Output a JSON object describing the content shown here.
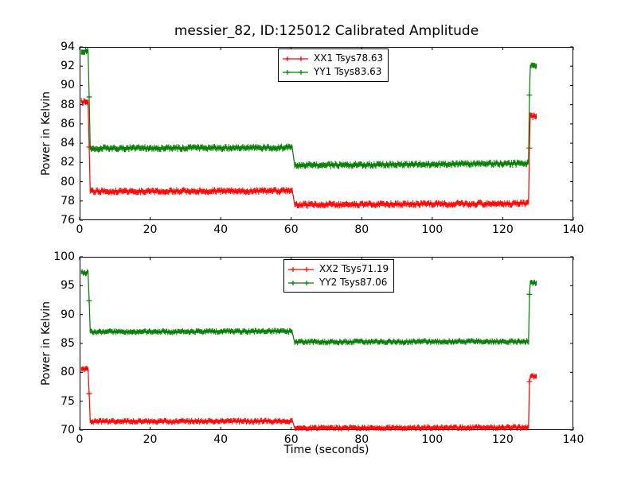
{
  "figure": {
    "title": "messier_82, ID:125012 Calibrated Amplitude",
    "background_color": "#ffffff",
    "axes_color": "#000000"
  },
  "chart_data": [
    {
      "type": "line",
      "subtype": "errorbar-timeseries",
      "title": "",
      "xlabel": "",
      "ylabel": "Power in Kelvin",
      "xlim": [
        0,
        140
      ],
      "ylim": [
        76,
        94
      ],
      "xticks": [
        0,
        20,
        40,
        60,
        80,
        100,
        120,
        140
      ],
      "yticks": [
        76,
        78,
        80,
        82,
        84,
        86,
        88,
        90,
        92,
        94
      ],
      "grid": false,
      "legend_position": "upper center",
      "series": [
        {
          "name": "XX1",
          "label": "XX1 Tsys78.63",
          "color": "#ff0000",
          "noise": 0.16,
          "segments": [
            [
              0.5,
              2.4,
              88.3,
              88.3
            ],
            [
              3.0,
              60.3,
              79.0,
              79.05
            ],
            [
              61.0,
              127.3,
              77.6,
              77.75
            ],
            [
              127.8,
              129.5,
              86.8,
              86.8
            ]
          ],
          "markers": [
            [
              2.7,
              83.6
            ],
            [
              127.55,
              83.5
            ]
          ]
        },
        {
          "name": "YY1",
          "label": "YY1 Tsys83.63",
          "color": "#007d00",
          "noise": 0.16,
          "segments": [
            [
              0.5,
              2.4,
              93.55,
              93.55
            ],
            [
              3.0,
              60.3,
              83.45,
              83.55
            ],
            [
              61.0,
              127.3,
              81.7,
              81.9
            ],
            [
              127.8,
              129.5,
              92.0,
              92.0
            ]
          ],
          "markers": [
            [
              2.7,
              88.8
            ],
            [
              127.55,
              89.0
            ]
          ]
        }
      ]
    },
    {
      "type": "line",
      "subtype": "errorbar-timeseries",
      "title": "",
      "xlabel": "Time (seconds)",
      "ylabel": "Power in Kelvin",
      "xlim": [
        0,
        140
      ],
      "ylim": [
        70,
        100
      ],
      "xticks": [
        0,
        20,
        40,
        60,
        80,
        100,
        120,
        140
      ],
      "yticks": [
        70,
        75,
        80,
        85,
        90,
        95,
        100
      ],
      "grid": false,
      "legend_position": "upper center",
      "series": [
        {
          "name": "XX2",
          "label": "XX2 Tsys71.19",
          "color": "#ff0000",
          "noise": 0.22,
          "segments": [
            [
              0.5,
              2.4,
              80.5,
              80.5
            ],
            [
              3.0,
              60.3,
              71.5,
              71.55
            ],
            [
              61.0,
              127.3,
              70.35,
              70.45
            ],
            [
              127.8,
              129.5,
              79.3,
              79.3
            ]
          ],
          "markers": [
            [
              2.7,
              76.3
            ],
            [
              127.55,
              78.4
            ]
          ]
        },
        {
          "name": "YY2",
          "label": "YY2 Tsys87.06",
          "color": "#007d00",
          "noise": 0.22,
          "segments": [
            [
              0.5,
              2.4,
              97.25,
              97.25
            ],
            [
              3.0,
              60.3,
              87.0,
              87.1
            ],
            [
              61.0,
              127.3,
              85.25,
              85.35
            ],
            [
              127.8,
              129.5,
              95.5,
              95.5
            ]
          ],
          "markers": [
            [
              2.7,
              92.4
            ],
            [
              127.55,
              93.5
            ]
          ]
        }
      ]
    }
  ]
}
